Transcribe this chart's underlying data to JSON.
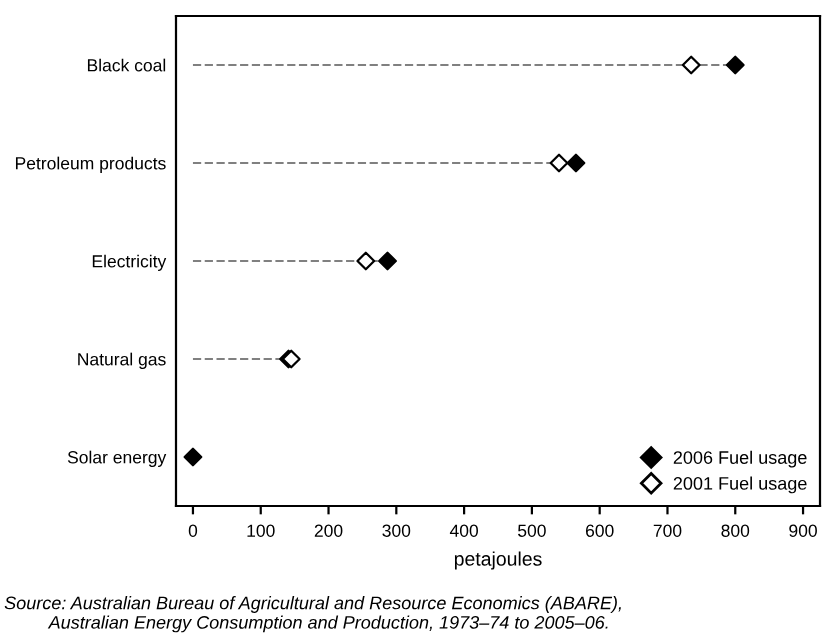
{
  "chart_data": {
    "type": "scatter",
    "orientation": "horizontal",
    "xlabel": "petajoules",
    "categories": [
      "Black coal",
      "Petroleum products",
      "Electricity",
      "Natural gas",
      "Solar energy"
    ],
    "series": [
      {
        "name": "2006 Fuel usage",
        "type": "lollipop",
        "color": "#000000",
        "marker": "diamond",
        "line_style": "dashed",
        "values": [
          800,
          565,
          287,
          141,
          0
        ]
      },
      {
        "name": "2001 Fuel usage",
        "color": "#ffffff",
        "marker": "diamond",
        "values": [
          735,
          540,
          255,
          145,
          null
        ]
      }
    ],
    "xlim": [
      -25,
      925
    ],
    "xticks": [
      0,
      100,
      200,
      300,
      400,
      500,
      600,
      700,
      800,
      900
    ],
    "grid": false,
    "legend": "bottom right",
    "annotations": [
      "Source: Australian Bureau of Agricultural and Resource Economics (ABARE),\n         Australian Energy Consumption and Production, 1973–74 to 2005–06."
    ]
  }
}
